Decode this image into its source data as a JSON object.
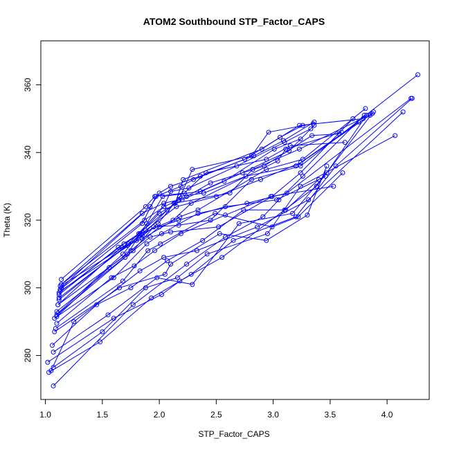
{
  "chart_data": {
    "type": "line",
    "title": "ATOM2 Southbound STP_Factor_CAPS",
    "xlabel": "STP_Factor_CAPS",
    "ylabel": "Theta (K)",
    "xlim": [
      0.96,
      4.37
    ],
    "ylim": [
      267.0,
      373.0
    ],
    "x_ticks": [
      1.0,
      1.5,
      2.0,
      2.5,
      3.0,
      3.5,
      4.0
    ],
    "x_tick_labels": [
      "1.0",
      "1.5",
      "2.0",
      "2.5",
      "3.0",
      "3.5",
      "4.0"
    ],
    "y_ticks": [
      280,
      300,
      320,
      340,
      360
    ],
    "y_tick_labels": [
      "280",
      "300",
      "320",
      "340",
      "360"
    ],
    "grid": false,
    "legend": "none",
    "color": "#0000ff",
    "marker": "open-circle",
    "series": [
      {
        "x": [
          1.07,
          1.77,
          2.24,
          2.58,
          2.91,
          3.05,
          3.26,
          3.8
        ],
        "y": [
          271.0,
          295.0,
          307.0,
          315.0,
          321.0,
          326.0,
          333.0,
          351.0
        ]
      },
      {
        "x": [
          1.03,
          1.48,
          1.93,
          2.28,
          2.65,
          3.2,
          3.55,
          4.22
        ],
        "y": [
          275.0,
          284.0,
          297.0,
          304.0,
          314.0,
          321.0,
          336.0,
          356.0
        ]
      },
      {
        "x": [
          1.05,
          1.25,
          1.83,
          2.04,
          2.33,
          2.86,
          3.31,
          4.14
        ],
        "y": [
          275.5,
          290.0,
          305.0,
          309.0,
          311.0,
          318.0,
          326.0,
          352.0
        ]
      },
      {
        "x": [
          1.02,
          1.6,
          2.02,
          2.18,
          2.55,
          3.1,
          3.38,
          3.88
        ],
        "y": [
          278.0,
          291.0,
          298.0,
          302.0,
          309.0,
          323.0,
          330.0,
          352.0
        ]
      },
      {
        "x": [
          1.07,
          1.5,
          1.88,
          2.16,
          2.42,
          2.95,
          3.24,
          4.07
        ],
        "y": [
          276.5,
          287.0,
          300.0,
          303.0,
          310.0,
          316.0,
          330.0,
          345.0
        ]
      },
      {
        "x": [
          1.07,
          1.55,
          1.98,
          2.29,
          2.7,
          3.17,
          3.47,
          3.82
        ],
        "y": [
          281.0,
          292.0,
          303.0,
          301.0,
          319.0,
          322.0,
          334.0,
          351.0
        ]
      },
      {
        "x": [
          1.06,
          1.45,
          1.75,
          2.07,
          2.38,
          2.74,
          3.11,
          3.4
        ],
        "y": [
          283.0,
          295.0,
          300.0,
          308.0,
          314.0,
          323.0,
          323.0,
          332.0
        ]
      },
      {
        "x": [
          1.08,
          1.65,
          2.05,
          2.1,
          2.53,
          2.94,
          3.3,
          3.47
        ],
        "y": [
          287.0,
          300.0,
          304.0,
          307.0,
          316.0,
          314.0,
          321.5,
          336.0
        ]
      },
      {
        "x": [
          1.09,
          1.68,
          1.9,
          2.01,
          2.49,
          2.99,
          3.22,
          3.61
        ],
        "y": [
          288.0,
          302.0,
          311.0,
          313.0,
          322.0,
          318.0,
          321.0,
          334.0
        ]
      },
      {
        "x": [
          1.08,
          1.6,
          1.89,
          2.02,
          2.34,
          2.77,
          3.12,
          4.21
        ],
        "y": [
          291.0,
          303.0,
          313.0,
          316.0,
          322.0,
          325.0,
          328.0,
          356.0
        ]
      },
      {
        "x": [
          1.1,
          1.7,
          1.92,
          2.1,
          2.52,
          2.99,
          3.24,
          3.7
        ],
        "y": [
          292.0,
          309.0,
          315.0,
          316.5,
          318.0,
          327.0,
          334.0,
          350.0
        ]
      },
      {
        "x": [
          1.1,
          1.77,
          1.95,
          2.17,
          2.45,
          2.81,
          3.24,
          4.27
        ],
        "y": [
          293.0,
          311.0,
          318.0,
          318.5,
          320.0,
          332.0,
          336.0,
          363.0
        ]
      },
      {
        "x": [
          1.11,
          1.67,
          1.85,
          2.18,
          2.34,
          2.94,
          3.26,
          3.81
        ],
        "y": [
          295.0,
          312.0,
          314.5,
          321.0,
          323.0,
          335.0,
          338.0,
          353.0
        ]
      },
      {
        "x": [
          1.12,
          1.72,
          1.88,
          2.15,
          2.5,
          2.89,
          3.24,
          3.75
        ],
        "y": [
          297.0,
          312.5,
          317.0,
          324.0,
          327.0,
          332.0,
          337.0,
          349.0
        ]
      },
      {
        "x": [
          1.12,
          1.69,
          1.84,
          2.12,
          2.28,
          3.04,
          3.11,
          3.6
        ],
        "y": [
          298.5,
          313.0,
          316.0,
          320.0,
          325.0,
          337.5,
          341.0,
          346.0
        ]
      },
      {
        "x": [
          1.13,
          1.8,
          1.99,
          2.18,
          2.39,
          2.76,
          3.2,
          3.85
        ],
        "y": [
          299.0,
          314.0,
          319.0,
          327.0,
          328.0,
          333.0,
          336.0,
          351.0
        ]
      },
      {
        "x": [
          1.13,
          1.85,
          2.07,
          2.13,
          2.62,
          2.82,
          3.23,
          3.87
        ],
        "y": [
          300.5,
          315.5,
          323.0,
          325.0,
          328.0,
          335.0,
          341.0,
          351.5
        ]
      },
      {
        "x": [
          1.14,
          1.87,
          2.04,
          2.24,
          2.45,
          2.92,
          3.34,
          3.58
        ],
        "y": [
          301.0,
          320.0,
          324.0,
          327.0,
          331.0,
          336.0,
          345.0,
          345.5
        ]
      },
      {
        "x": [
          1.14,
          1.88,
          1.96,
          2.22,
          2.41,
          2.94,
          3.15,
          3.63
        ],
        "y": [
          302.5,
          324.0,
          327.0,
          328.0,
          334.0,
          338.0,
          342.0,
          343.0
        ]
      },
      {
        "x": [
          1.14,
          1.85,
          2.04,
          2.17,
          2.29,
          2.81,
          2.96,
          3.35
        ],
        "y": [
          301.0,
          322.0,
          325.0,
          326.0,
          335.0,
          339.0,
          346.0,
          348.5
        ]
      },
      {
        "x": [
          1.14,
          1.92,
          2.0,
          2.1,
          2.36,
          2.83,
          3.09,
          3.36
        ],
        "y": [
          300.0,
          324.0,
          328.0,
          330.0,
          333.0,
          339.0,
          343.5,
          349.0
        ]
      },
      {
        "x": [
          1.13,
          1.85,
          1.97,
          2.19,
          2.3,
          2.75,
          3.23,
          3.79
        ],
        "y": [
          299.5,
          319.0,
          327.0,
          330.0,
          332.0,
          338.0,
          348.0,
          350.0
        ]
      },
      {
        "x": [
          1.12,
          1.64,
          1.82,
          2.14,
          2.21,
          2.9,
          3.06,
          3.26
        ],
        "y": [
          298.0,
          312.0,
          316.0,
          325.0,
          332.0,
          341.0,
          344.5,
          348.0
        ]
      },
      {
        "x": [
          1.12,
          1.73,
          2.04,
          2.1,
          2.26,
          2.68,
          3.1,
          3.33
        ],
        "y": [
          296.5,
          313.0,
          324.0,
          328.5,
          329.5,
          336.0,
          343.0,
          347.0
        ]
      },
      {
        "x": [
          1.11,
          1.72,
          1.89,
          2.03,
          2.36,
          2.73,
          3.14,
          3.36
        ],
        "y": [
          295.0,
          310.0,
          319.0,
          327.0,
          328.5,
          334.0,
          340.5,
          348.0
        ]
      },
      {
        "x": [
          1.11,
          1.68,
          1.83,
          2.0,
          2.2,
          2.57,
          3.01,
          3.24
        ],
        "y": [
          292.5,
          310.0,
          316.0,
          322.0,
          326.0,
          331.5,
          341.0,
          344.0
        ]
      },
      {
        "x": [
          1.1,
          1.56,
          1.75,
          2.0,
          2.17,
          2.58,
          3.03,
          3.46
        ],
        "y": [
          291.5,
          306.0,
          311.0,
          318.0,
          320.0,
          324.0,
          326.0,
          333.0
        ]
      },
      {
        "x": [
          1.1,
          1.58,
          1.78,
          1.96,
          2.19,
          2.58,
          2.98,
          3.53
        ],
        "y": [
          289.5,
          303.0,
          306.5,
          311.0,
          316.0,
          321.5,
          327.0,
          330.0
        ]
      }
    ]
  }
}
